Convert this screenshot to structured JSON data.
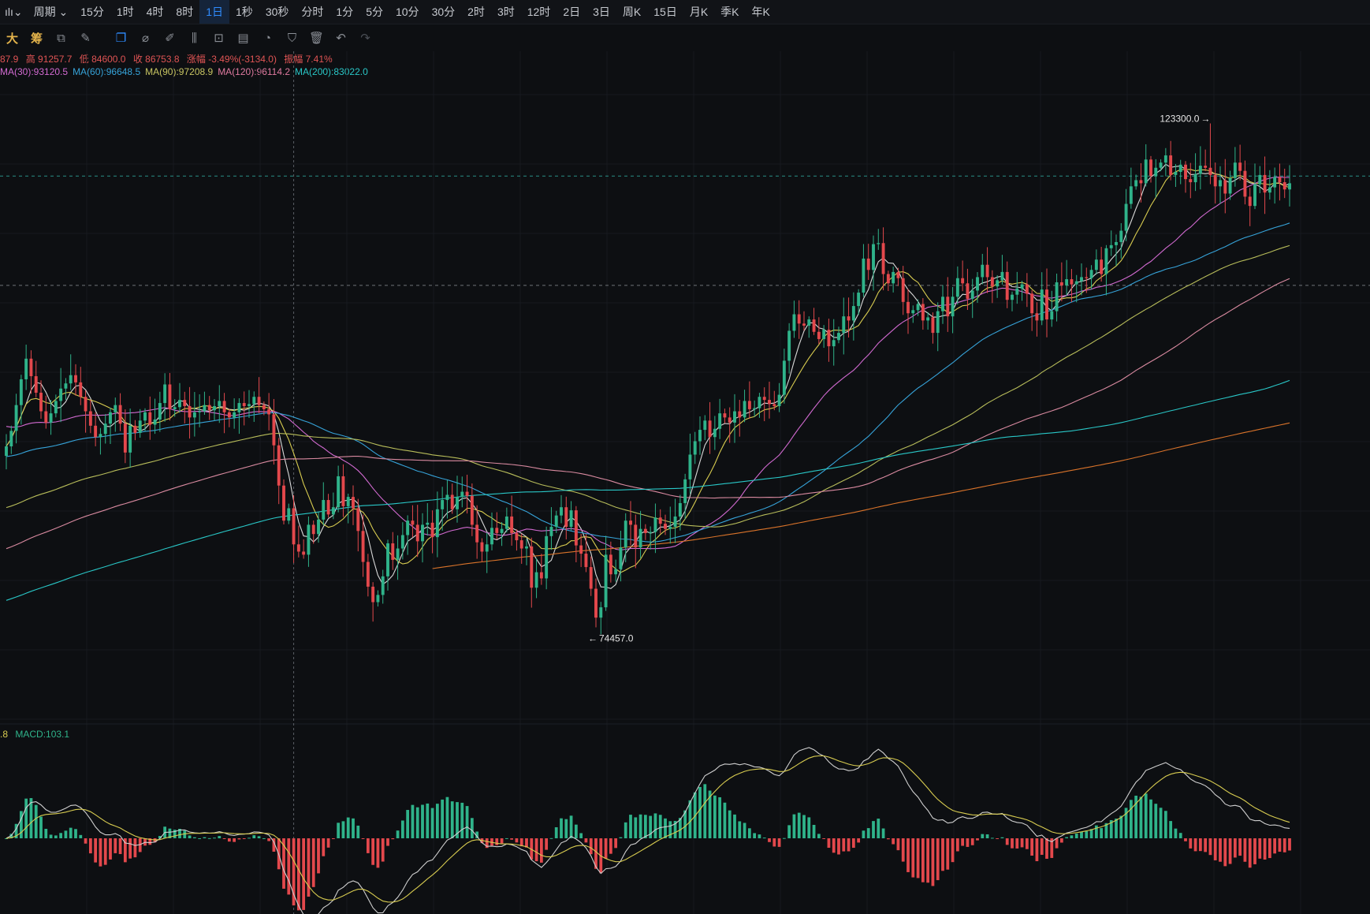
{
  "topbar": {
    "chart_type_icon": "candle-icon",
    "period_label": "周期",
    "intervals": [
      "15分",
      "1时",
      "4时",
      "8时",
      "1日",
      "1秒",
      "30秒",
      "分时",
      "1分",
      "5分",
      "10分",
      "30分",
      "2时",
      "3时",
      "12时",
      "2日",
      "3日",
      "周K",
      "15日",
      "月K",
      "季K",
      "年K"
    ],
    "active_interval": "1日"
  },
  "toolbar": {
    "big_label": "大",
    "chip_label": "筹",
    "tools": [
      "indicator-icon",
      "line-tool-icon",
      "layers-icon",
      "ruler-icon",
      "brush-icon",
      "pattern-icon",
      "lock-icon",
      "note-icon",
      "magnet-icon",
      "filter-icon",
      "trash-icon",
      "undo-icon",
      "redo-icon"
    ]
  },
  "ohlc": {
    "open": "87.9",
    "high": "高 91257.7",
    "low": "低 84600.0",
    "close": "收 86753.8",
    "change": "涨幅 -3.49%(-3134.0)",
    "amplitude": "振幅 7.41%"
  },
  "ma_legend": [
    {
      "label": "MA(30):93120.5",
      "color": "#d26ad1"
    },
    {
      "label": "MA(60):96648.5",
      "color": "#36a3d9"
    },
    {
      "label": "MA(90):97208.9",
      "color": "#c8c562"
    },
    {
      "label": "MA(120):96114.2",
      "color": "#e07aa0"
    },
    {
      "label": "MA(200):83022.0",
      "color": "#29c7c7"
    }
  ],
  "macd_legend": {
    "prefix": ".8",
    "macd": "MACD:103.1"
  },
  "annotations": {
    "high_label": "123300.0",
    "low_label": "74457.0"
  },
  "colors": {
    "up": "#2fb38a",
    "down": "#e3484c",
    "ma5": "#d9d9d9",
    "ma10": "#d8cc50",
    "ma30": "#d26ad1",
    "ma60": "#36a3d9",
    "ma90": "#b8bd5a",
    "ma120": "#d98aa0",
    "ma200": "#29c7c7",
    "ma365": "#d9732a",
    "dif": "#cfcfcf",
    "dea": "#d8cc50"
  },
  "chart_data": {
    "type": "candlestick",
    "price_range": [
      68000,
      128000
    ],
    "high": 123300.0,
    "low": 74457.0,
    "closes": [
      92000,
      93500,
      96000,
      98500,
      100500,
      98800,
      97200,
      95400,
      94300,
      95200,
      96400,
      97600,
      98100,
      98900,
      98200,
      96800,
      95400,
      94000,
      92900,
      93200,
      94200,
      95300,
      96000,
      94200,
      91400,
      94000,
      93300,
      94500,
      95300,
      94100,
      94600,
      96200,
      98000,
      95600,
      95800,
      96500,
      95900,
      94800,
      95300,
      95400,
      96000,
      95500,
      95900,
      96400,
      95300,
      94800,
      95300,
      96200,
      95900,
      96100,
      96800,
      96000,
      95600,
      95100,
      92100,
      88200,
      84800,
      86000,
      82500,
      81800,
      81500,
      84400,
      83500,
      84900,
      86800,
      85400,
      86100,
      89100,
      86200,
      87100,
      86000,
      83800,
      80800,
      78400,
      76900,
      77600,
      79400,
      82600,
      81000,
      82100,
      83400,
      84800,
      84400,
      82800,
      84400,
      84600,
      83200,
      85900,
      86800,
      87300,
      85900,
      87100,
      87600,
      87200,
      84400,
      82700,
      81800,
      82500,
      84100,
      83600,
      84000,
      85200,
      83600,
      82900,
      82100,
      82300,
      78300,
      79800,
      79200,
      83300,
      84200,
      85300,
      86100,
      84200,
      85800,
      82400,
      81600,
      80300,
      78200,
      75400,
      76400,
      81500,
      79600,
      80100,
      82200,
      84800,
      84400,
      82200,
      84000,
      83600,
      83700,
      85100,
      84500,
      84000,
      84200,
      85200,
      86500,
      88800,
      91200,
      92500,
      93600,
      94500,
      92900,
      93700,
      95200,
      94800,
      94300,
      95400,
      94800,
      96400,
      95600,
      95700,
      96800,
      96500,
      96100,
      95900,
      97000,
      100300,
      103200,
      104800,
      103900,
      103700,
      104300,
      103100,
      102400,
      103300,
      101700,
      102300,
      103000,
      104600,
      104200,
      105600,
      106900,
      110200,
      109100,
      111600,
      111700,
      108700,
      107800,
      108900,
      108300,
      106000,
      104900,
      105200,
      105800,
      104200,
      104500,
      103000,
      105100,
      106500,
      104600,
      106500,
      108300,
      107800,
      106300,
      107100,
      108400,
      109600,
      108400,
      107500,
      108100,
      108900,
      106200,
      106700,
      107300,
      107700,
      106800,
      104900,
      104200,
      107200,
      104300,
      105100,
      107900,
      107600,
      108200,
      107700,
      108000,
      108400,
      108300,
      109100,
      110100,
      108700,
      111200,
      111500,
      111800,
      112900,
      115500,
      117200,
      117800,
      117500,
      119800,
      118200,
      119000,
      119500,
      120200,
      118300,
      118600,
      119300,
      117900,
      117600,
      118400,
      119200,
      119000,
      118300,
      117200,
      117800,
      116500,
      118000,
      119500,
      118700,
      116200,
      115300,
      117400,
      118300,
      116600,
      117100,
      118100,
      117600,
      116900,
      117500
    ],
    "series": [
      {
        "name": "MA5",
        "color_key": "ma5"
      },
      {
        "name": "MA10",
        "color_key": "ma10"
      },
      {
        "name": "MA30",
        "color_key": "ma30"
      },
      {
        "name": "MA60",
        "color_key": "ma60"
      },
      {
        "name": "MA90",
        "color_key": "ma90"
      },
      {
        "name": "MA120",
        "color_key": "ma120"
      },
      {
        "name": "MA200",
        "color_key": "ma200"
      },
      {
        "name": "MA365",
        "color_key": "ma365"
      }
    ],
    "dash_levels": [
      118200,
      107600
    ],
    "crosshair_index": 58,
    "sub_chart": {
      "type": "macd",
      "fast": 12,
      "slow": 26,
      "signal": 9
    }
  }
}
